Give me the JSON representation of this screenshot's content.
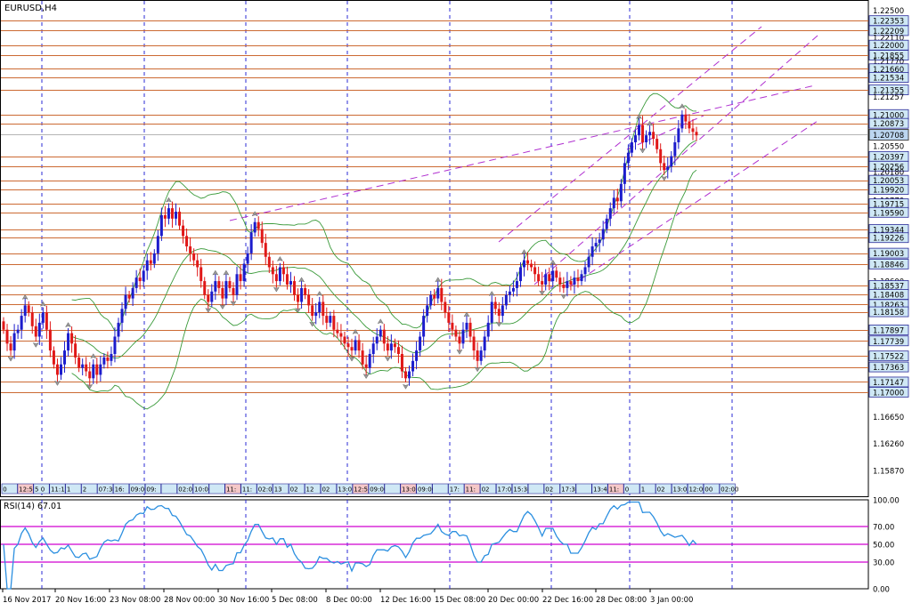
{
  "chart_title": "EURUSD,H4",
  "rsi_label": "RSI(14) 67.01",
  "colors": {
    "grid_h": "#cc6a33",
    "grid_v": "#2b2bd6",
    "bull": "#1c1ccc",
    "bear": "#e01818",
    "bands": "#3a9a3a",
    "channel": "#b030d0",
    "rsi_line": "#2b8fe0",
    "rsi_level": "#d000d0",
    "price_box_bg": "#cfe8f5",
    "price_box_border": "#2a2a99",
    "current_box_bg": "#bcd6f0"
  },
  "chart_data": {
    "type": "candlestick",
    "symbol": "EURUSD",
    "timeframe": "H4",
    "ylim": [
      1.155,
      1.2265
    ],
    "x_labels": [
      "16 Nov 2017",
      "20 Nov 16:00",
      "23 Nov 08:00",
      "28 Nov 00:00",
      "30 Nov 16:00",
      "5 Dec 08:00",
      "8 Dec 00:00",
      "12 Dec 16:00",
      "15 Dec 08:00",
      "20 Dec 00:00",
      "22 Dec 16:00",
      "28 Dec 08:00",
      "3 Jan 00:00"
    ],
    "price_levels": [
      "1.22500",
      "1.22353",
      "1.22209",
      "1.22110",
      "1.22000",
      "1.21855",
      "1.21770",
      "1.21660",
      "1.21534",
      "1.21355",
      "1.21257",
      "1.21000",
      "1.20873",
      "1.20708",
      "1.20550",
      "1.20397",
      "1.20256",
      "1.20180",
      "1.20053",
      "1.19920",
      "1.19770",
      "1.19715",
      "1.19590",
      "1.19344",
      "1.19226",
      "1.19003",
      "1.18846",
      "1.18600",
      "1.18537",
      "1.18408",
      "1.18263",
      "1.18158",
      "1.17897",
      "1.17739",
      "1.17522",
      "1.17363",
      "1.17147",
      "1.17000",
      "1.16650",
      "1.16260",
      "1.15870"
    ],
    "boxed_levels": [
      "1.22353",
      "1.22209",
      "1.22000",
      "1.21855",
      "1.21660",
      "1.21534",
      "1.21355",
      "1.21000",
      "1.20873",
      "1.20397",
      "1.20256",
      "1.20053",
      "1.19920",
      "1.19715",
      "1.19590",
      "1.19344",
      "1.19226",
      "1.19003",
      "1.18846",
      "1.18537",
      "1.18408",
      "1.18263",
      "1.18158",
      "1.17897",
      "1.17739",
      "1.17522",
      "1.17363",
      "1.17147",
      "1.17000"
    ],
    "current_price": "1.20708",
    "closes": [
      1.179,
      1.177,
      1.176,
      1.1785,
      1.179,
      1.181,
      1.1825,
      1.1815,
      1.1795,
      1.178,
      1.18,
      1.1815,
      1.179,
      1.176,
      1.174,
      1.1725,
      1.174,
      1.176,
      1.1785,
      1.177,
      1.175,
      1.1735,
      1.174,
      1.173,
      1.172,
      1.174,
      1.1725,
      1.174,
      1.175,
      1.1745,
      1.1755,
      1.178,
      1.18,
      1.182,
      1.184,
      1.1835,
      1.185,
      1.1865,
      1.186,
      1.1875,
      1.189,
      1.1885,
      1.19,
      1.1925,
      1.1955,
      1.195,
      1.1965,
      1.195,
      1.196,
      1.194,
      1.1925,
      1.191,
      1.19,
      1.189,
      1.188,
      1.186,
      1.184,
      1.183,
      1.1845,
      1.186,
      1.185,
      1.1835,
      1.186,
      1.185,
      1.184,
      1.187,
      1.186,
      1.1885,
      1.19,
      1.193,
      1.1945,
      1.1935,
      1.1915,
      1.1895,
      1.188,
      1.187,
      1.186,
      1.188,
      1.187,
      1.1855,
      1.186,
      1.184,
      1.183,
      1.185,
      1.184,
      1.1825,
      1.181,
      1.1815,
      1.183,
      1.181,
      1.18,
      1.181,
      1.179,
      1.1785,
      1.178,
      1.177,
      1.1765,
      1.176,
      1.1775,
      1.176,
      1.174,
      1.1735,
      1.1755,
      1.177,
      1.178,
      1.179,
      1.177,
      1.176,
      1.177,
      1.1765,
      1.1755,
      1.173,
      1.172,
      1.173,
      1.1745,
      1.176,
      1.178,
      1.181,
      1.1825,
      1.184,
      1.1835,
      1.185,
      1.183,
      1.1815,
      1.18,
      1.179,
      1.178,
      1.177,
      1.179,
      1.18,
      1.178,
      1.176,
      1.1745,
      1.176,
      1.178,
      1.18,
      1.183,
      1.182,
      1.181,
      1.1825,
      1.184,
      1.1845,
      1.185,
      1.186,
      1.188,
      1.189,
      1.1885,
      1.188,
      1.187,
      1.186,
      1.1855,
      1.187,
      1.186,
      1.1875,
      1.1865,
      1.1855,
      1.185,
      1.186,
      1.1855,
      1.1865,
      1.186,
      1.187,
      1.188,
      1.1895,
      1.191,
      1.1915,
      1.192,
      1.1935,
      1.195,
      1.1965,
      1.198,
      1.1975,
      1.2,
      1.203,
      1.2045,
      1.206,
      1.207,
      1.2085,
      1.206,
      1.207,
      1.2075,
      1.2065,
      1.205,
      1.203,
      1.202,
      1.2025,
      1.204,
      1.206,
      1.208,
      1.21,
      1.209,
      1.208,
      1.2075,
      1.207
    ],
    "rsi": {
      "label": "RSI(14)",
      "value": 67.01,
      "levels": [
        70,
        50,
        30
      ],
      "ylim": [
        0,
        100
      ],
      "tick_labels": [
        "100.00",
        "70.00",
        "50.00",
        "30.00",
        "0.00"
      ]
    }
  },
  "time_boxes": [
    "0",
    "12:57",
    "5 0",
    "11:17",
    "1",
    "2",
    "07:30",
    "16:",
    "09:00",
    "09:",
    "",
    "02:00",
    "10:00",
    "",
    "11:",
    "11:",
    "02:0",
    "13",
    "02",
    "12",
    "02",
    "13:0",
    "12:5",
    "09:00",
    "",
    "13:0",
    "09:00",
    "",
    "17:",
    "11:",
    "02",
    "17:0",
    "15:30",
    "",
    "02",
    "17:30",
    "",
    "13:4",
    "11:",
    "0",
    "1",
    "02",
    "13:01",
    "12:09",
    "00",
    "02:00"
  ]
}
